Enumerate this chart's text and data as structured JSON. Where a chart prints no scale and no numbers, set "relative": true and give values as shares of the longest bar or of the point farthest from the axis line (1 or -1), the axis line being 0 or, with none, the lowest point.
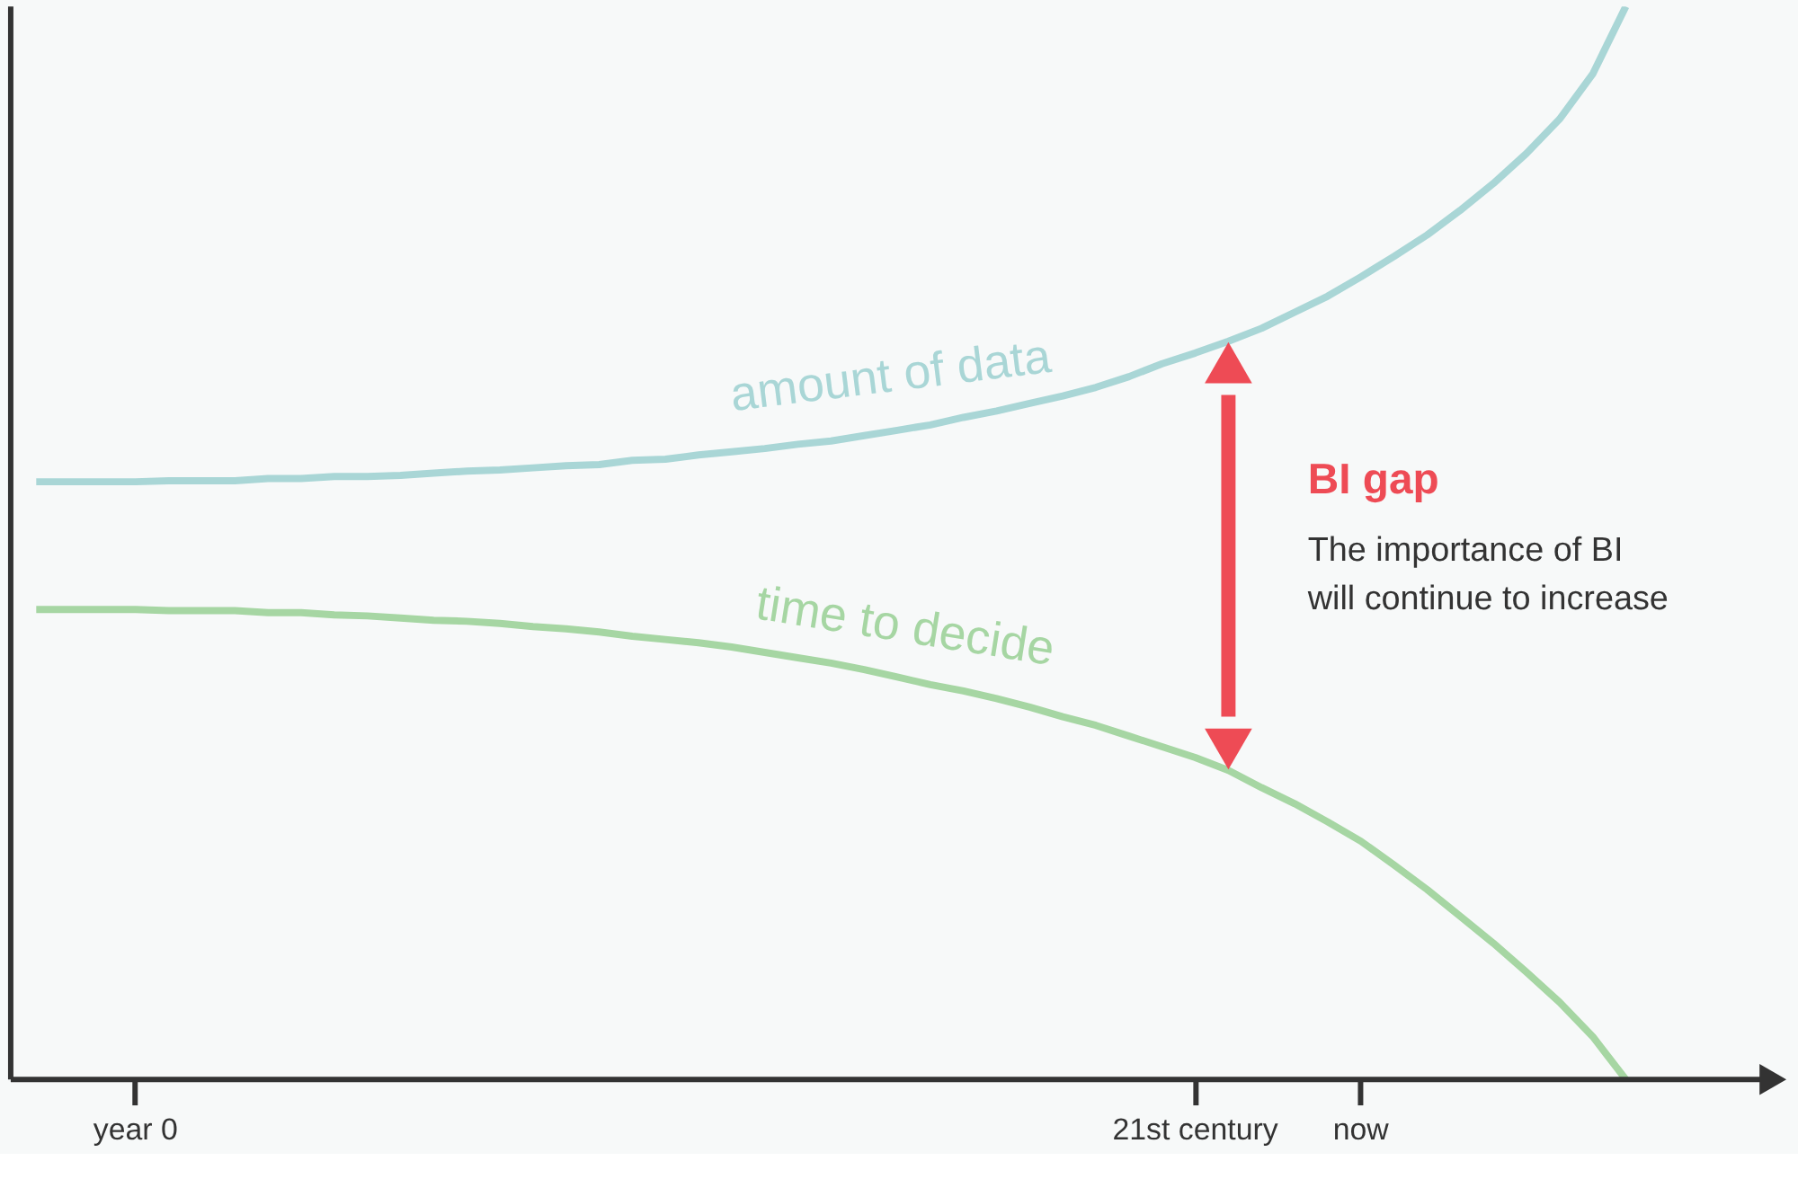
{
  "chart_data": {
    "type": "line",
    "relative": true,
    "tick_labels": "x",
    "categories": [
      null,
      null,
      null,
      "year 0",
      null,
      null,
      null,
      null,
      null,
      null,
      null,
      null,
      null,
      null,
      null,
      null,
      null,
      null,
      null,
      null,
      null,
      null,
      null,
      null,
      null,
      null,
      null,
      null,
      null,
      null,
      null,
      null,
      null,
      null,
      null,
      "21st century",
      null,
      null,
      null,
      null,
      "now",
      null,
      null,
      null,
      null,
      null,
      null,
      null,
      null
    ],
    "series": [
      {
        "name": "amount of data",
        "color": "#a9d6d6",
        "values": [
          0.557,
          0.557,
          0.557,
          0.557,
          0.558,
          0.558,
          0.558,
          0.56,
          0.56,
          0.562,
          0.562,
          0.563,
          0.565,
          0.567,
          0.568,
          0.57,
          0.572,
          0.573,
          0.577,
          0.578,
          0.582,
          0.585,
          0.588,
          0.592,
          0.595,
          0.6,
          0.605,
          0.61,
          0.617,
          0.623,
          0.63,
          0.637,
          0.645,
          0.655,
          0.667,
          0.677,
          0.688,
          0.7,
          0.715,
          0.73,
          0.748,
          0.767,
          0.787,
          0.81,
          0.835,
          0.863,
          0.895,
          0.937,
          1
        ]
      },
      {
        "name": "time to decide",
        "color": "#a6d6a3",
        "values": [
          0.438,
          0.438,
          0.438,
          0.438,
          0.437,
          0.437,
          0.437,
          0.435,
          0.435,
          0.433,
          0.432,
          0.43,
          0.428,
          0.427,
          0.425,
          0.422,
          0.42,
          0.417,
          0.413,
          0.41,
          0.407,
          0.403,
          0.398,
          0.393,
          0.388,
          0.382,
          0.375,
          0.368,
          0.362,
          0.355,
          0.347,
          0.338,
          0.33,
          0.32,
          0.31,
          0.3,
          0.288,
          0.272,
          0.257,
          0.24,
          0.222,
          0.2,
          0.177,
          0.152,
          0.127,
          0.1,
          0.072,
          0.04,
          0
        ]
      }
    ],
    "annotations": [
      "BI gap",
      "The importance of BI will continue to increase"
    ]
  }
}
